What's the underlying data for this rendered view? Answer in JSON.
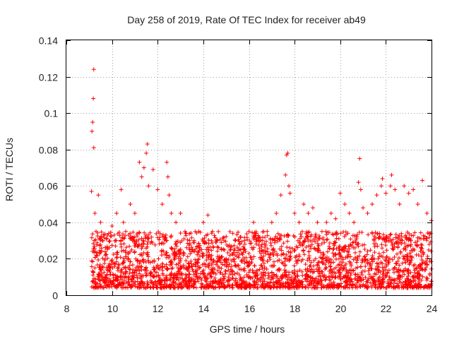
{
  "chart_data": {
    "type": "scatter",
    "title": "Day 258 of 2019, Rate Of TEC Index for receiver ab49",
    "xlabel": "GPS time / hours",
    "ylabel": "ROTI / TECUs",
    "xlim": [
      8,
      24
    ],
    "ylim": [
      0,
      0.14
    ],
    "x_ticks": [
      8,
      10,
      12,
      14,
      16,
      18,
      20,
      22,
      24
    ],
    "x_tick_labels": [
      "8",
      "10",
      "12",
      "14",
      "16",
      "18",
      "20",
      "22",
      "24"
    ],
    "y_ticks": [
      0,
      0.02,
      0.04,
      0.06,
      0.08,
      0.1,
      0.12,
      0.14
    ],
    "y_tick_labels": [
      "0",
      "0.02",
      "0.04",
      "0.06",
      "0.08",
      "0.1",
      "0.12",
      "0.14"
    ],
    "grid": true,
    "marker": "plus",
    "color": "#ff0000",
    "series": [
      {
        "name": "ROTI",
        "x": [
          9.1,
          9.12,
          9.15,
          9.18,
          9.2,
          9.2,
          9.22,
          9.25,
          9.3,
          9.4,
          9.5,
          9.6,
          9.8,
          10.0,
          10.2,
          10.4,
          10.5,
          10.6,
          10.8,
          11.0,
          11.2,
          11.3,
          11.4,
          11.5,
          11.55,
          11.6,
          11.8,
          12.0,
          12.2,
          12.4,
          12.45,
          12.5,
          12.6,
          12.8,
          13.0,
          13.2,
          13.4,
          13.6,
          13.8,
          14.0,
          14.2,
          14.4,
          14.6,
          14.8,
          15.0,
          15.2,
          15.4,
          15.6,
          15.8,
          16.0,
          16.2,
          16.4,
          16.6,
          16.8,
          17.0,
          17.2,
          17.4,
          17.6,
          17.65,
          17.7,
          17.75,
          17.8,
          18.0,
          18.2,
          18.4,
          18.6,
          18.8,
          19.0,
          19.2,
          19.4,
          19.6,
          19.8,
          20.0,
          20.2,
          20.4,
          20.6,
          20.8,
          20.85,
          20.9,
          21.0,
          21.2,
          21.4,
          21.6,
          21.8,
          21.85,
          22.0,
          22.2,
          22.25,
          22.4,
          22.6,
          22.8,
          23.0,
          23.2,
          23.4,
          23.6,
          23.8,
          24.0
        ],
        "y": [
          0.057,
          0.09,
          0.095,
          0.108,
          0.124,
          0.081,
          0.03,
          0.045,
          0.035,
          0.055,
          0.04,
          0.03,
          0.033,
          0.038,
          0.045,
          0.058,
          0.04,
          0.035,
          0.05,
          0.045,
          0.073,
          0.065,
          0.07,
          0.078,
          0.083,
          0.06,
          0.069,
          0.058,
          0.05,
          0.073,
          0.065,
          0.055,
          0.045,
          0.04,
          0.045,
          0.035,
          0.03,
          0.03,
          0.035,
          0.04,
          0.044,
          0.035,
          0.03,
          0.025,
          0.02,
          0.025,
          0.03,
          0.028,
          0.03,
          0.035,
          0.04,
          0.03,
          0.03,
          0.035,
          0.04,
          0.045,
          0.055,
          0.066,
          0.077,
          0.078,
          0.06,
          0.056,
          0.045,
          0.04,
          0.05,
          0.045,
          0.048,
          0.04,
          0.035,
          0.04,
          0.045,
          0.042,
          0.056,
          0.05,
          0.045,
          0.04,
          0.062,
          0.075,
          0.058,
          0.048,
          0.045,
          0.05,
          0.055,
          0.06,
          0.064,
          0.056,
          0.06,
          0.066,
          0.058,
          0.05,
          0.06,
          0.056,
          0.058,
          0.05,
          0.063,
          0.045,
          0.041
        ]
      }
    ],
    "background_band": {
      "x_start": 9.1,
      "x_end": 24.0,
      "typical_min": 0.004,
      "typical_max": 0.035
    }
  }
}
